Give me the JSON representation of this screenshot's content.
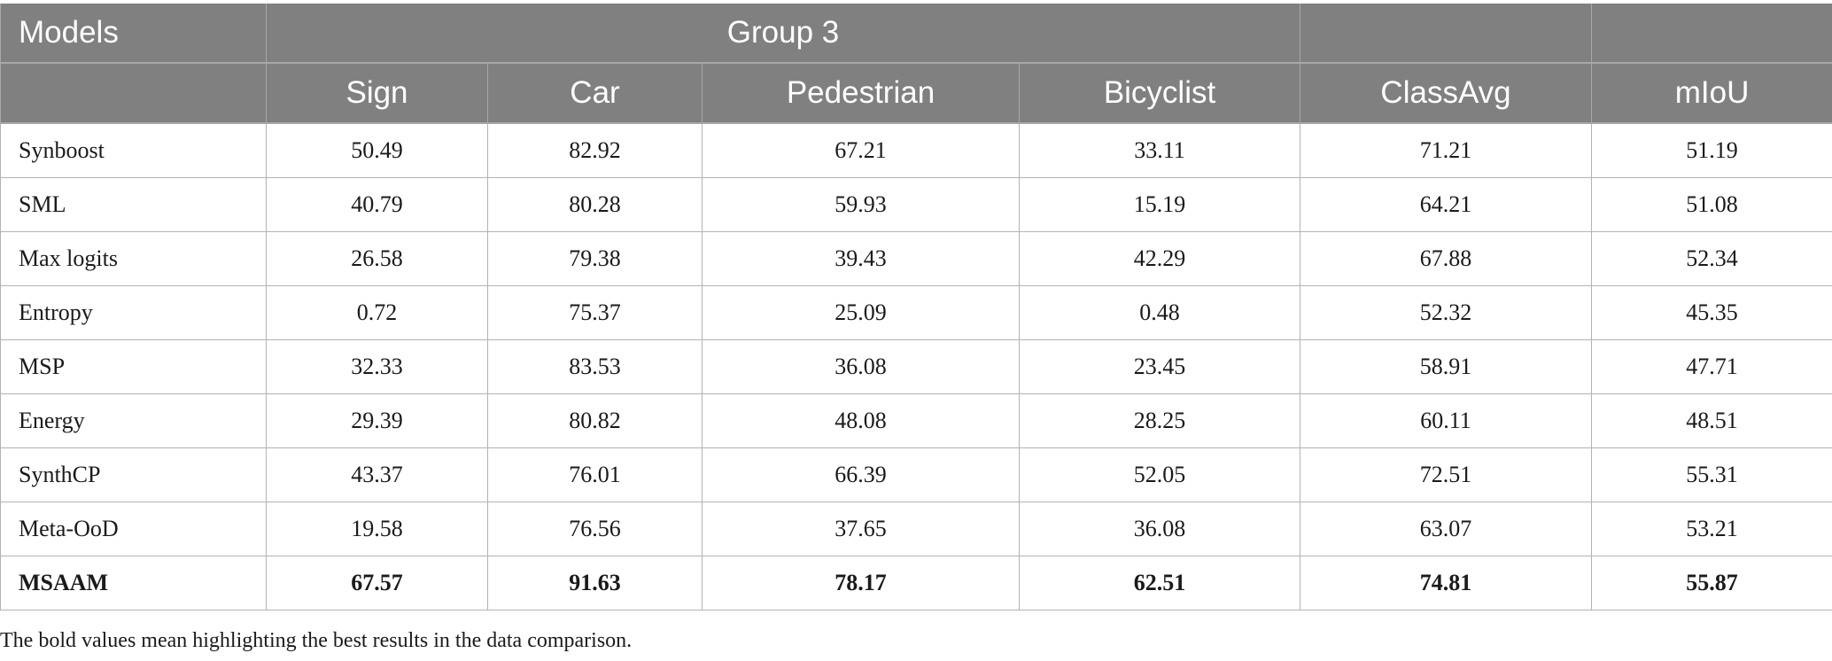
{
  "header": {
    "models_label": "Models",
    "group_label": "Group 3",
    "columns": [
      "Sign",
      "Car",
      "Pedestrian",
      "Bicyclist",
      "ClassAvg",
      "mIoU"
    ]
  },
  "rows": [
    {
      "model": "Synboost",
      "values": [
        "50.49",
        "82.92",
        "67.21",
        "33.11",
        "71.21",
        "51.19"
      ]
    },
    {
      "model": "SML",
      "values": [
        "40.79",
        "80.28",
        "59.93",
        "15.19",
        "64.21",
        "51.08"
      ]
    },
    {
      "model": "Max logits",
      "values": [
        "26.58",
        "79.38",
        "39.43",
        "42.29",
        "67.88",
        "52.34"
      ]
    },
    {
      "model": "Entropy",
      "values": [
        "0.72",
        "75.37",
        "25.09",
        "0.48",
        "52.32",
        "45.35"
      ]
    },
    {
      "model": "MSP",
      "values": [
        "32.33",
        "83.53",
        "36.08",
        "23.45",
        "58.91",
        "47.71"
      ]
    },
    {
      "model": "Energy",
      "values": [
        "29.39",
        "80.82",
        "48.08",
        "28.25",
        "60.11",
        "48.51"
      ]
    },
    {
      "model": "SynthCP",
      "values": [
        "43.37",
        "76.01",
        "66.39",
        "52.05",
        "72.51",
        "55.31"
      ]
    },
    {
      "model": "Meta-OoD",
      "values": [
        "19.58",
        "76.56",
        "37.65",
        "36.08",
        "63.07",
        "53.21"
      ]
    },
    {
      "model": "MSAAM",
      "values": [
        "67.57",
        "91.63",
        "78.17",
        "62.51",
        "74.81",
        "55.87"
      ],
      "bold": true
    }
  ],
  "footnote": "The bold values mean highlighting the best results in the data comparison."
}
